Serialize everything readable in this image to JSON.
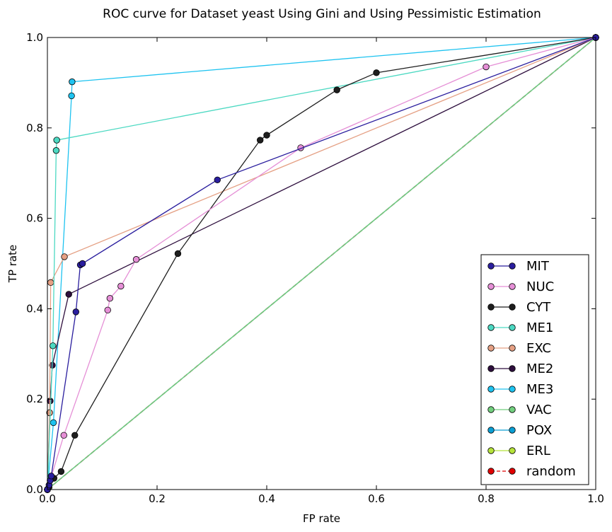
{
  "chart_data": {
    "type": "line",
    "title": "ROC curve for Dataset yeast Using Gini and Using Pessimistic Estimation",
    "xlabel": "FP rate",
    "ylabel": "TP rate",
    "xlim": [
      0,
      1
    ],
    "ylim": [
      0,
      1
    ],
    "xticks": [
      "0.0",
      "0.2",
      "0.4",
      "0.6",
      "0.8",
      "1.0"
    ],
    "yticks": [
      "0.0",
      "0.2",
      "0.4",
      "0.6",
      "0.8",
      "1.0"
    ],
    "grid": false,
    "legend_position": "lower-right",
    "series": [
      {
        "name": "MIT",
        "color": "#2a1e9e",
        "dashed": false,
        "points": [
          [
            0,
            0
          ],
          [
            0.003,
            0.01
          ],
          [
            0.005,
            0.02
          ],
          [
            0.007,
            0.03
          ],
          [
            0.052,
            0.393
          ],
          [
            0.06,
            0.497
          ],
          [
            0.064,
            0.5
          ],
          [
            0.31,
            0.685
          ],
          [
            1,
            1
          ]
        ]
      },
      {
        "name": "NUC",
        "color": "#e58fd6",
        "dashed": false,
        "points": [
          [
            0,
            0
          ],
          [
            0.03,
            0.12
          ],
          [
            0.11,
            0.397
          ],
          [
            0.114,
            0.423
          ],
          [
            0.134,
            0.45
          ],
          [
            0.162,
            0.509
          ],
          [
            0.462,
            0.756
          ],
          [
            0.8,
            0.935
          ],
          [
            1,
            1
          ]
        ]
      },
      {
        "name": "CYT",
        "color": "#1e1e1e",
        "dashed": false,
        "points": [
          [
            0,
            0
          ],
          [
            0.003,
            0.005
          ],
          [
            0.012,
            0.025
          ],
          [
            0.025,
            0.04
          ],
          [
            0.05,
            0.12
          ],
          [
            0.238,
            0.522
          ],
          [
            0.388,
            0.773
          ],
          [
            0.4,
            0.784
          ],
          [
            0.528,
            0.884
          ],
          [
            0.6,
            0.922
          ],
          [
            1,
            1
          ]
        ]
      },
      {
        "name": "ME1",
        "color": "#4cd9c2",
        "dashed": false,
        "points": [
          [
            0,
            0
          ],
          [
            0.01,
            0.318
          ],
          [
            0.016,
            0.75
          ],
          [
            0.017,
            0.773
          ],
          [
            1,
            1
          ]
        ]
      },
      {
        "name": "EXC",
        "color": "#e5a084",
        "dashed": false,
        "points": [
          [
            0,
            0
          ],
          [
            0.004,
            0.17
          ],
          [
            0.006,
            0.458
          ],
          [
            0.031,
            0.515
          ],
          [
            1,
            1
          ]
        ]
      },
      {
        "name": "ME2",
        "color": "#2e0f3e",
        "dashed": false,
        "points": [
          [
            0,
            0
          ],
          [
            0.005,
            0.196
          ],
          [
            0.009,
            0.275
          ],
          [
            0.039,
            0.432
          ],
          [
            1,
            1
          ]
        ]
      },
      {
        "name": "ME3",
        "color": "#1ec3f0",
        "dashed": false,
        "points": [
          [
            0,
            0
          ],
          [
            0.011,
            0.148
          ],
          [
            0.044,
            0.871
          ],
          [
            0.045,
            0.902
          ],
          [
            1,
            1
          ]
        ]
      },
      {
        "name": "VAC",
        "color": "#72cf7e",
        "dashed": false,
        "points": [
          [
            0,
            0
          ],
          [
            1,
            1
          ]
        ]
      },
      {
        "name": "POX",
        "color": "#0b9fd4",
        "dashed": false,
        "points": [
          [
            0,
            0
          ],
          [
            1,
            1
          ]
        ]
      },
      {
        "name": "ERL",
        "color": "#b5e33a",
        "dashed": false,
        "points": [
          [
            0,
            0
          ],
          [
            1,
            1
          ]
        ]
      },
      {
        "name": "random",
        "color": "#e00000",
        "dashed": true,
        "points": [
          [
            0,
            0
          ],
          [
            1,
            1
          ]
        ]
      }
    ]
  }
}
